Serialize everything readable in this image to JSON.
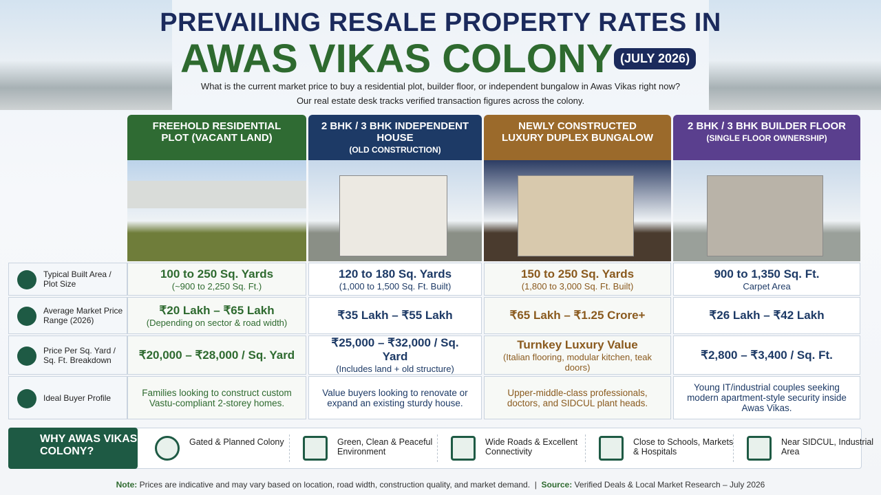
{
  "header": {
    "title_line1": "PREVAILING RESALE PROPERTY RATES IN",
    "title_line2": "AWAS VIKAS COLONY",
    "badge": "(JULY 2026)",
    "intro": [
      "What is the current market price to buy a residential plot, builder floor, or independent bungalow in Awas Vikas right now?",
      "Our real estate desk tracks verified transaction figures across the colony."
    ]
  },
  "columns": [
    {
      "title": "FREEHOLD RESIDENTIAL PLOT (VACANT LAND)",
      "color": "#2f6b33"
    },
    {
      "title": "2 BHK / 3 BHK INDEPENDENT HOUSE",
      "subtitle": "(OLD CONSTRUCTION)",
      "color": "#1d3a66"
    },
    {
      "title": "NEWLY CONSTRUCTED LUXURY DUPLEX BUNGALOW",
      "color": "#9b6a2b"
    },
    {
      "title": "2 BHK / 3 BHK BUILDER FLOOR",
      "subtitle": "(SINGLE FLOOR OWNERSHIP)",
      "color": "#5a3f8e"
    }
  ],
  "rows": [
    {
      "label": "Typical Built Area / Plot Size",
      "cells": [
        {
          "main": "100 to 250 Sq. Yards",
          "detail": "(~900 to 2,250 Sq. Ft.)"
        },
        {
          "main": "120 to 180 Sq. Yards",
          "detail": "(1,000 to 1,500 Sq. Ft. Built)"
        },
        {
          "main": "150 to 250 Sq. Yards",
          "detail": "(1,800 to 3,000 Sq. Ft. Built)"
        },
        {
          "main": "900 to 1,350 Sq. Ft.",
          "detail": "Carpet Area"
        }
      ]
    },
    {
      "label": "Average Market Price Range (2026)",
      "cells": [
        {
          "main": "₹20 Lakh – ₹65 Lakh",
          "detail": "(Depending on sector & road width)"
        },
        {
          "main": "₹35 Lakh – ₹55 Lakh"
        },
        {
          "main": "₹65 Lakh – ₹1.25 Crore+"
        },
        {
          "main": "₹26 Lakh – ₹42 Lakh"
        }
      ]
    },
    {
      "label": "Price Per Sq. Yard / Sq. Ft. Breakdown",
      "cells": [
        {
          "main": "₹20,000 – ₹28,000 / Sq. Yard"
        },
        {
          "main": "₹25,000 – ₹32,000 / Sq. Yard",
          "detail": "(Includes land + old structure)"
        },
        {
          "main": "Turnkey Luxury Value",
          "detail": "(Italian flooring, modular kitchen, teak doors)"
        },
        {
          "main": "₹2,800 – ₹3,400 / Sq. Ft."
        }
      ]
    },
    {
      "label": "Ideal Buyer Profile",
      "cells": [
        {
          "detail": "Families looking to construct custom Vastu-compliant 2-storey homes."
        },
        {
          "detail": "Value buyers looking to renovate or expand an existing sturdy house."
        },
        {
          "detail": "Upper-middle-class professionals, doctors, and SIDCUL plant heads."
        },
        {
          "detail": "Young IT/industrial couples seeking modern apartment-style security inside Awas Vikas."
        }
      ]
    }
  ],
  "why": {
    "title": "WHY AWAS VIKAS COLONY?",
    "items": [
      "Gated & Planned Colony",
      "Green, Clean & Peaceful Environment",
      "Wide Roads & Excellent Connectivity",
      "Close to Schools, Markets & Hospitals",
      "Near SIDCUL, Industrial Area"
    ]
  },
  "footer": {
    "note_label": "Note:",
    "note": "Prices are indicative and may vary based on location, road width, construction quality, and market demand.",
    "source_label": "Source:",
    "source": "Verified Deals & Local Market Research – July 2026"
  }
}
